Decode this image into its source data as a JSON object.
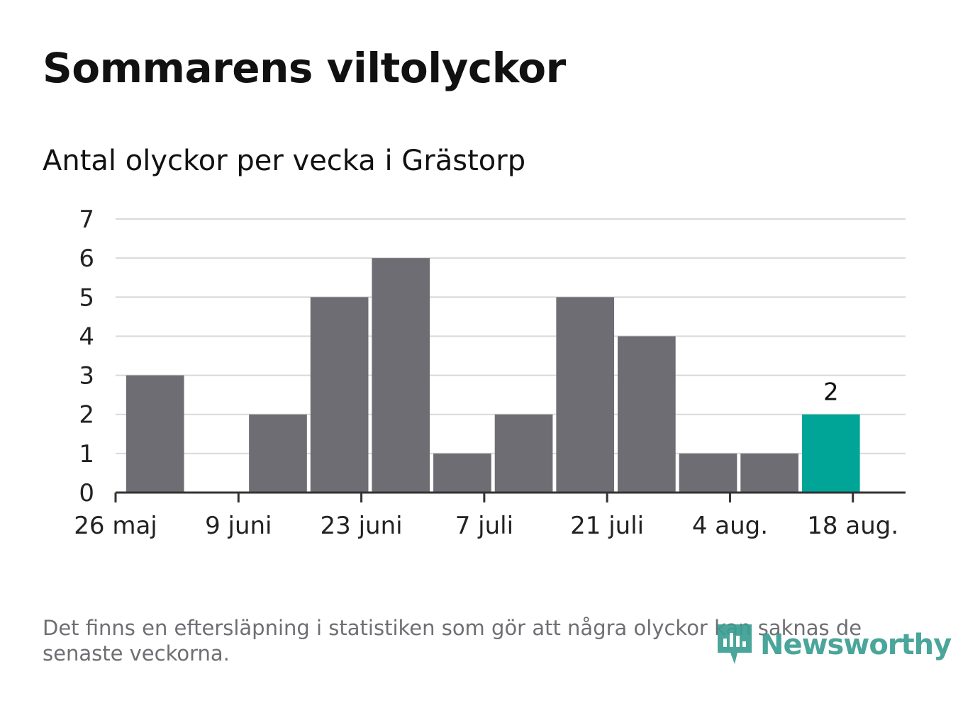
{
  "title": "Sommarens viltolyckor",
  "subtitle": "Antal olyckor per vecka i Grästorp",
  "footnote": "Det finns en eftersläpning i statistiken som gör att några olyckor kan saknas de senaste veckorna.",
  "brand": {
    "name": "Newsworthy",
    "icon": "newsworthy-logo-icon"
  },
  "colors": {
    "bar": "#6e6d73",
    "highlight": "#00a598",
    "grid": "#d9d9d9",
    "axis": "#333333",
    "text": "#111111",
    "muted": "#6f6e73",
    "brand": "#3b9e92"
  },
  "chart_data": {
    "type": "bar",
    "title": "Sommarens viltolyckor",
    "subtitle": "Antal olyckor per vecka i Grästorp",
    "x": [
      "2024-05-27",
      "2024-06-03",
      "2024-06-10",
      "2024-06-17",
      "2024-06-24",
      "2024-07-01",
      "2024-07-08",
      "2024-07-15",
      "2024-07-22",
      "2024-07-29",
      "2024-08-05",
      "2024-08-12"
    ],
    "values": [
      3,
      0,
      2,
      5,
      6,
      1,
      2,
      5,
      4,
      1,
      1,
      2
    ],
    "highlight_last": true,
    "annotations": [
      {
        "x": "2024-08-12",
        "text": "2"
      }
    ],
    "xticks": [
      {
        "x": "2024-05-26",
        "label": "26 maj"
      },
      {
        "x": "2024-06-09",
        "label": "9 juni"
      },
      {
        "x": "2024-06-23",
        "label": "23 juni"
      },
      {
        "x": "2024-07-07",
        "label": "7 juli"
      },
      {
        "x": "2024-07-21",
        "label": "21 juli"
      },
      {
        "x": "2024-08-04",
        "label": "4 aug."
      },
      {
        "x": "2024-08-18",
        "label": "18 aug."
      }
    ],
    "yticks": [
      0,
      1,
      2,
      3,
      4,
      5,
      6,
      7
    ],
    "ylim": [
      0,
      7
    ],
    "xlim": [
      "2024-05-26",
      "2024-08-24"
    ],
    "grid": true,
    "xlabel": "",
    "ylabel": ""
  }
}
